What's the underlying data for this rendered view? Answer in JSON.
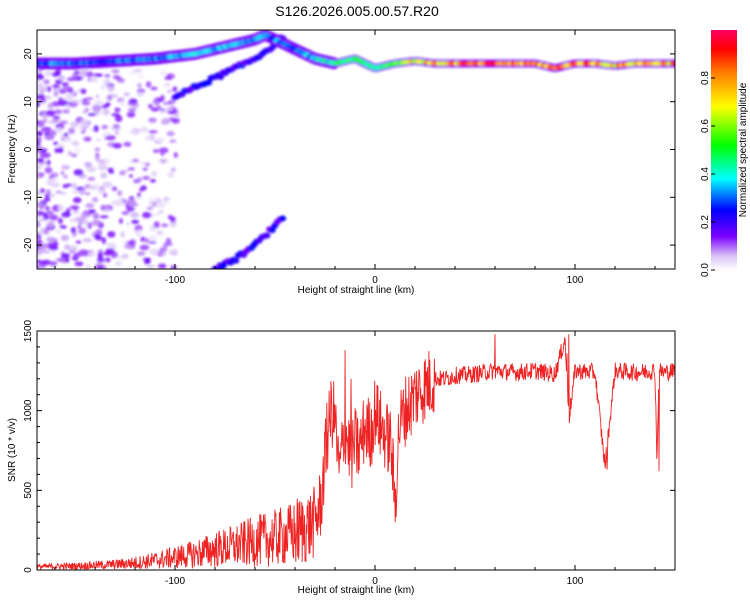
{
  "title": "S126.2026.005.00.57.R20",
  "chart_data": [
    {
      "type": "heatmap",
      "xlabel": "Height of straight line (km)",
      "ylabel": "Frequency (Hz)",
      "xlim": [
        -169,
        150
      ],
      "ylim": [
        -25,
        25
      ],
      "xticks": [
        -100,
        0,
        100
      ],
      "yticks": [
        -20,
        -10,
        0,
        10,
        20
      ],
      "colorbar": {
        "label": "Normalized spectral amplitude",
        "range": [
          0,
          1
        ],
        "ticks": [
          "0.0",
          "0.2",
          "0.4",
          "0.6",
          "0.8"
        ],
        "colormap": [
          "#ffffff",
          "#d7c0f5",
          "#7b00ff",
          "#0000ff",
          "#00ffff",
          "#00ff00",
          "#ffff00",
          "#ff7f00",
          "#ff0000",
          "#ff0066"
        ]
      },
      "ridge_frequency_hz": {
        "x": [
          -169,
          -150,
          -130,
          -110,
          -100,
          -90,
          -80,
          -70,
          -60,
          -55,
          -45,
          -30,
          -20,
          -10,
          0,
          10,
          20,
          30,
          40,
          50,
          60,
          70,
          80,
          90,
          100,
          110,
          120,
          130,
          140,
          150
        ],
        "y": [
          18,
          18,
          18.5,
          19,
          19.5,
          20,
          21,
          22,
          23,
          24,
          22,
          19,
          18,
          19,
          17,
          18,
          18.5,
          18,
          18,
          18,
          18,
          18,
          18,
          17,
          18,
          18,
          17.5,
          18,
          18,
          18
        ]
      },
      "ridge_amplitude": {
        "x": [
          -169,
          -140,
          -110,
          -90,
          -70,
          -50,
          -30,
          -15,
          0,
          20,
          40,
          60,
          80,
          100,
          120,
          150
        ],
        "y": [
          0.35,
          0.3,
          0.35,
          0.4,
          0.4,
          0.35,
          0.4,
          0.6,
          0.5,
          0.8,
          0.9,
          0.95,
          0.9,
          0.95,
          0.85,
          0.9
        ]
      },
      "secondary_branch_hz": {
        "x": [
          -100,
          -90,
          -80,
          -70,
          -60,
          -50,
          -45
        ],
        "y": [
          11,
          13,
          15,
          17,
          19,
          22,
          24
        ]
      },
      "lower_branch_hz": {
        "x": [
          -80,
          -70,
          -60,
          -55,
          -50,
          -45
        ],
        "y": [
          -25,
          -23,
          -20,
          -18,
          -16,
          -14
        ]
      }
    },
    {
      "type": "line",
      "xlabel": "Height of straight line (km)",
      "ylabel": "SNR (10 * v/v)",
      "xlim": [
        -169,
        150
      ],
      "ylim": [
        0,
        1500
      ],
      "xticks": [
        -100,
        0,
        100
      ],
      "yticks": [
        0,
        500,
        1000,
        1500
      ],
      "color": "#ee2222",
      "series": [
        {
          "x": [
            -169,
            -150,
            -130,
            -120,
            -110,
            -100,
            -90,
            -80,
            -70,
            -60,
            -50,
            -40,
            -35,
            -30,
            -27,
            -25,
            -22,
            -20,
            -18,
            -15,
            -12,
            -10,
            -8,
            -5,
            -2,
            0,
            3,
            5,
            8,
            10,
            12,
            15,
            18,
            20,
            25,
            30,
            35,
            40,
            50,
            60,
            70,
            80,
            90,
            95,
            97,
            100,
            110,
            115,
            120,
            130,
            140,
            141,
            142,
            145,
            150
          ],
          "y": [
            20,
            25,
            35,
            45,
            60,
            80,
            100,
            130,
            150,
            180,
            200,
            230,
            260,
            300,
            420,
            700,
            1000,
            950,
            600,
            900,
            700,
            800,
            750,
            900,
            850,
            1000,
            900,
            850,
            800,
            400,
            900,
            1000,
            1050,
            1100,
            1150,
            1200,
            1200,
            1220,
            1230,
            1250,
            1240,
            1250,
            1230,
            1450,
            950,
            1250,
            1240,
            650,
            1250,
            1240,
            1250,
            680,
            1250,
            1240,
            1250
          ]
        }
      ]
    }
  ]
}
